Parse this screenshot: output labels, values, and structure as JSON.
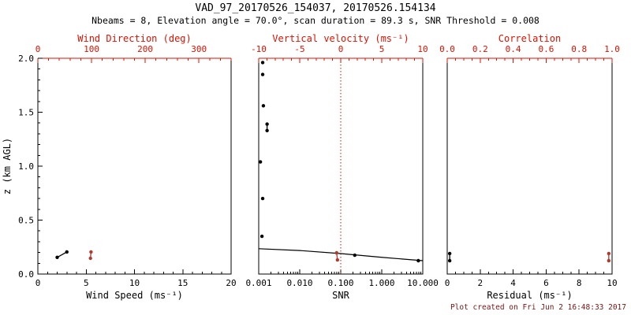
{
  "header": {
    "title": "VAD_97_20170526_154037, 20170526.154134",
    "subtitle": "Nbeams = 8, Elevation angle = 70.0°, scan duration = 89.3 s, SNR Threshold = 0.008"
  },
  "footer": {
    "created": "Plot created on Fri Jun  2 16:48:33 2017"
  },
  "colors": {
    "axis_red": "#dd1100",
    "data_red": "#b03a2e",
    "ref_line_red": "#cc1100",
    "black": "#000000",
    "footer_red": "#7a1212",
    "background": "#ffffff"
  },
  "y_axis": {
    "label": "z (km AGL)",
    "range": [
      0.0,
      2.0
    ],
    "ticks": [
      {
        "v": 0.0,
        "label": "0.0"
      },
      {
        "v": 0.5,
        "label": "0.5"
      },
      {
        "v": 1.0,
        "label": "1.0"
      },
      {
        "v": 1.5,
        "label": "1.5"
      },
      {
        "v": 2.0,
        "label": "2.0"
      }
    ],
    "minor_step": 0.1
  },
  "chart_data": [
    {
      "name": "wind-panel",
      "type": "scatter",
      "show_yticks": true,
      "bottom_axis": {
        "label": "Wind Speed (ms⁻¹)",
        "scale": "linear",
        "range": [
          0,
          20
        ],
        "ticks": [
          {
            "v": 0,
            "label": "0"
          },
          {
            "v": 5,
            "label": "5"
          },
          {
            "v": 10,
            "label": "10"
          },
          {
            "v": 15,
            "label": "15"
          },
          {
            "v": 20,
            "label": "20"
          }
        ],
        "minor_step": 1
      },
      "top_axis": {
        "label": "Wind Direction (deg)",
        "scale": "linear",
        "range": [
          0,
          360
        ],
        "ticks": [
          {
            "v": 0,
            "label": "0"
          },
          {
            "v": 100,
            "label": "100"
          },
          {
            "v": 200,
            "label": "200"
          },
          {
            "v": 300,
            "label": "300"
          }
        ],
        "minor_step": 20
      },
      "series": [
        {
          "name": "wind-speed",
          "axis": "bottom",
          "color_key": "black",
          "connect": true,
          "points": [
            [
              2.0,
              0.155
            ],
            [
              3.0,
              0.205
            ]
          ]
        },
        {
          "name": "wind-direction",
          "axis": "top",
          "color_key": "data_red",
          "connect": true,
          "points": [
            [
              98,
              0.146
            ],
            [
              99,
              0.205
            ]
          ]
        }
      ]
    },
    {
      "name": "snr-panel",
      "type": "scatter",
      "show_yticks": false,
      "bottom_axis": {
        "label": "SNR",
        "scale": "log",
        "range": [
          0.001,
          10.0
        ],
        "ticks": [
          {
            "v": 0.001,
            "label": "0.001"
          },
          {
            "v": 0.01,
            "label": "0.010"
          },
          {
            "v": 0.1,
            "label": "0.100"
          },
          {
            "v": 1.0,
            "label": "1.000"
          },
          {
            "v": 10.0,
            "label": "10.000"
          }
        ]
      },
      "top_axis": {
        "label": "Vertical velocity (ms⁻¹)",
        "scale": "linear",
        "range": [
          -10,
          10
        ],
        "ticks": [
          {
            "v": -10,
            "label": "-10"
          },
          {
            "v": -5,
            "label": "-5"
          },
          {
            "v": 0,
            "label": "0"
          },
          {
            "v": 5,
            "label": "5"
          },
          {
            "v": 10,
            "label": "10"
          }
        ],
        "minor_step": 1
      },
      "ref_line": {
        "axis": "top",
        "value": 0,
        "style": "dotted",
        "color_key": "ref_line_red"
      },
      "fit_line": {
        "axis": "bottom",
        "color_key": "black",
        "points": [
          [
            0.001,
            0.235
          ],
          [
            0.01,
            0.218
          ],
          [
            0.1,
            0.19
          ],
          [
            1.0,
            0.155
          ],
          [
            10.0,
            0.124
          ]
        ]
      },
      "series": [
        {
          "name": "snr-profile",
          "axis": "bottom",
          "color_key": "black",
          "connect": false,
          "points": [
            [
              0.00125,
              1.96
            ],
            [
              0.00125,
              1.85
            ],
            [
              0.0013,
              1.56
            ],
            [
              0.0011,
              1.04
            ],
            [
              0.00125,
              0.7
            ],
            [
              0.0012,
              0.35
            ],
            [
              0.22,
              0.175
            ],
            [
              7.8,
              0.124
            ]
          ]
        },
        {
          "name": "snr-pair",
          "axis": "bottom",
          "color_key": "black",
          "connect": true,
          "points": [
            [
              0.0016,
              1.39
            ],
            [
              0.0016,
              1.33
            ]
          ]
        },
        {
          "name": "vertical-velocity",
          "axis": "top",
          "color_key": "data_red",
          "connect": true,
          "points": [
            [
              -0.5,
              0.197
            ],
            [
              -0.4,
              0.131
            ]
          ]
        }
      ]
    },
    {
      "name": "residual-panel",
      "type": "scatter",
      "show_yticks": false,
      "bottom_axis": {
        "label": "Residual (ms⁻¹)",
        "scale": "linear",
        "range": [
          0,
          10
        ],
        "ticks": [
          {
            "v": 0,
            "label": "0"
          },
          {
            "v": 2,
            "label": "2"
          },
          {
            "v": 4,
            "label": "4"
          },
          {
            "v": 6,
            "label": "6"
          },
          {
            "v": 8,
            "label": "8"
          },
          {
            "v": 10,
            "label": "10"
          }
        ],
        "minor_step": 0.5
      },
      "top_axis": {
        "label": "Correlation",
        "scale": "linear",
        "range": [
          0.0,
          1.0
        ],
        "ticks": [
          {
            "v": 0.0,
            "label": "0.0"
          },
          {
            "v": 0.2,
            "label": "0.2"
          },
          {
            "v": 0.4,
            "label": "0.4"
          },
          {
            "v": 0.6,
            "label": "0.6"
          },
          {
            "v": 0.8,
            "label": "0.8"
          },
          {
            "v": 1.0,
            "label": "1.0"
          }
        ],
        "minor_step": 0.05
      },
      "series": [
        {
          "name": "residual",
          "axis": "bottom",
          "color_key": "black",
          "connect": true,
          "points": [
            [
              0.15,
              0.19
            ],
            [
              0.15,
              0.124
            ]
          ]
        },
        {
          "name": "correlation",
          "axis": "top",
          "color_key": "data_red",
          "connect": true,
          "points": [
            [
              0.98,
              0.19
            ],
            [
              0.98,
              0.124
            ]
          ]
        }
      ]
    }
  ]
}
